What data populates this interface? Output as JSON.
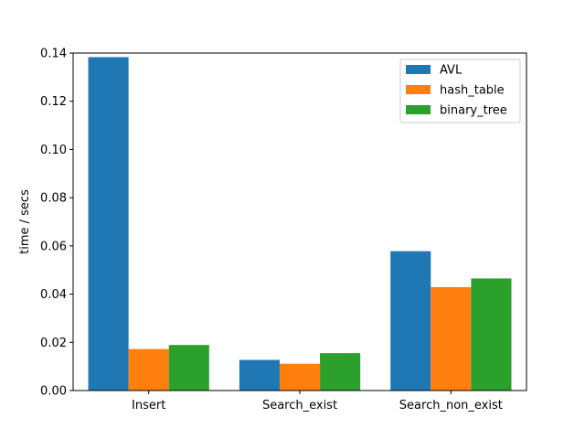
{
  "chart_data": {
    "type": "bar",
    "title": "",
    "xlabel": "",
    "ylabel": "time / secs",
    "categories": [
      "Insert",
      "Search_exist",
      "Search_non_exist"
    ],
    "series": [
      {
        "name": "AVL",
        "color": "#1f77b4",
        "values": [
          0.1383,
          0.0127,
          0.0578
        ]
      },
      {
        "name": "hash_table",
        "color": "#ff7f0e",
        "values": [
          0.0172,
          0.0111,
          0.0429
        ]
      },
      {
        "name": "binary_tree",
        "color": "#2ca02c",
        "values": [
          0.0189,
          0.0155,
          0.0465
        ]
      }
    ],
    "ylim": [
      0,
      0.14
    ],
    "yticks": [
      "0.00",
      "0.02",
      "0.04",
      "0.06",
      "0.08",
      "0.10",
      "0.12",
      "0.14"
    ],
    "grid": false,
    "legend_position": "top-right"
  }
}
